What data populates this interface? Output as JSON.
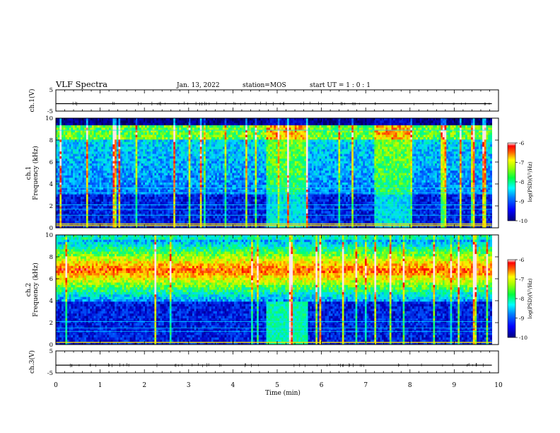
{
  "header": {
    "title": "VLF Spectra",
    "date": "Jan. 13, 2022",
    "station": "station=MOS",
    "start_ut": "start UT =  1 : 0 : 1"
  },
  "chart_data": [
    {
      "type": "line",
      "panel": "ch1-voltage",
      "ylabel": "ch.1(V)",
      "ylim": [
        -5,
        5
      ],
      "yticks": [
        "5",
        "-5"
      ],
      "x": [
        0,
        9.85
      ],
      "values": [
        -1.5,
        -1.5
      ]
    },
    {
      "type": "heatmap",
      "panel": "ch1-spectrogram",
      "ylabel": "ch.1\nFrequency (kHz)",
      "ylabel_line1": "ch.1",
      "ylabel_line2": "Frequency (kHz)",
      "ylim": [
        0,
        10
      ],
      "yticks": [
        "0",
        "2",
        "4",
        "6",
        "8",
        "10"
      ],
      "xlim": [
        0,
        10
      ],
      "data_extent_x": [
        0,
        9.85
      ],
      "colorbar": {
        "label": "log(PSD)(V²/Hz)",
        "ticks": [
          "-6",
          "-7",
          "-8",
          "-9",
          "-10"
        ],
        "range": [
          -10,
          -6
        ]
      },
      "features": {
        "broadband_noise_interval_min": [
          4.75,
          5.7
        ],
        "second_noise_interval_min": [
          7.2,
          8.0
        ],
        "narrowband_lines_kHz": [
          0.2,
          0.35,
          1.15,
          1.7,
          2.1,
          3.2,
          3.65,
          8.9
        ],
        "lower_noise_cutoff_kHz": 3.0
      }
    },
    {
      "type": "heatmap",
      "panel": "ch2-spectrogram",
      "ylabel": "ch.2\nFrequency (kHz)",
      "ylabel_line1": "ch.2",
      "ylabel_line2": "Frequency (kHz)",
      "ylim": [
        0,
        10
      ],
      "yticks": [
        "0",
        "2",
        "4",
        "6",
        "8",
        "10"
      ],
      "xlim": [
        0,
        10
      ],
      "data_extent_x": [
        0,
        9.85
      ],
      "colorbar": {
        "label": "log(PSD)(V²/Hz)",
        "ticks": [
          "-6",
          "-7",
          "-8",
          "-9",
          "-10"
        ],
        "range": [
          -10,
          -6
        ]
      },
      "features": {
        "emission_band_center_kHz": 6.8,
        "emission_band_width_kHz": 2.2,
        "broadband_noise_interval_min": [
          4.75,
          5.7
        ],
        "narrowband_lines_kHz": [
          0.2,
          1.2,
          1.5,
          2.1
        ]
      }
    },
    {
      "type": "line",
      "panel": "ch3-voltage",
      "ylabel": "ch.3(V)",
      "ylim": [
        -5,
        5
      ],
      "yticks": [
        "5",
        "-5"
      ],
      "x": [
        0,
        9.85
      ],
      "values": [
        -1.5,
        -1.5
      ]
    }
  ],
  "x_axis": {
    "label": "Time (min)",
    "ticks": [
      "0",
      "1",
      "2",
      "3",
      "4",
      "5",
      "6",
      "7",
      "8",
      "9",
      "10"
    ],
    "range": [
      0,
      10
    ]
  },
  "colors": {
    "colormap": [
      "#000080",
      "#0000ff",
      "#0080ff",
      "#00ffff",
      "#00ff80",
      "#80ff00",
      "#ffff00",
      "#ff8000",
      "#ff0000",
      "#ffffff"
    ],
    "background": "#000000"
  }
}
